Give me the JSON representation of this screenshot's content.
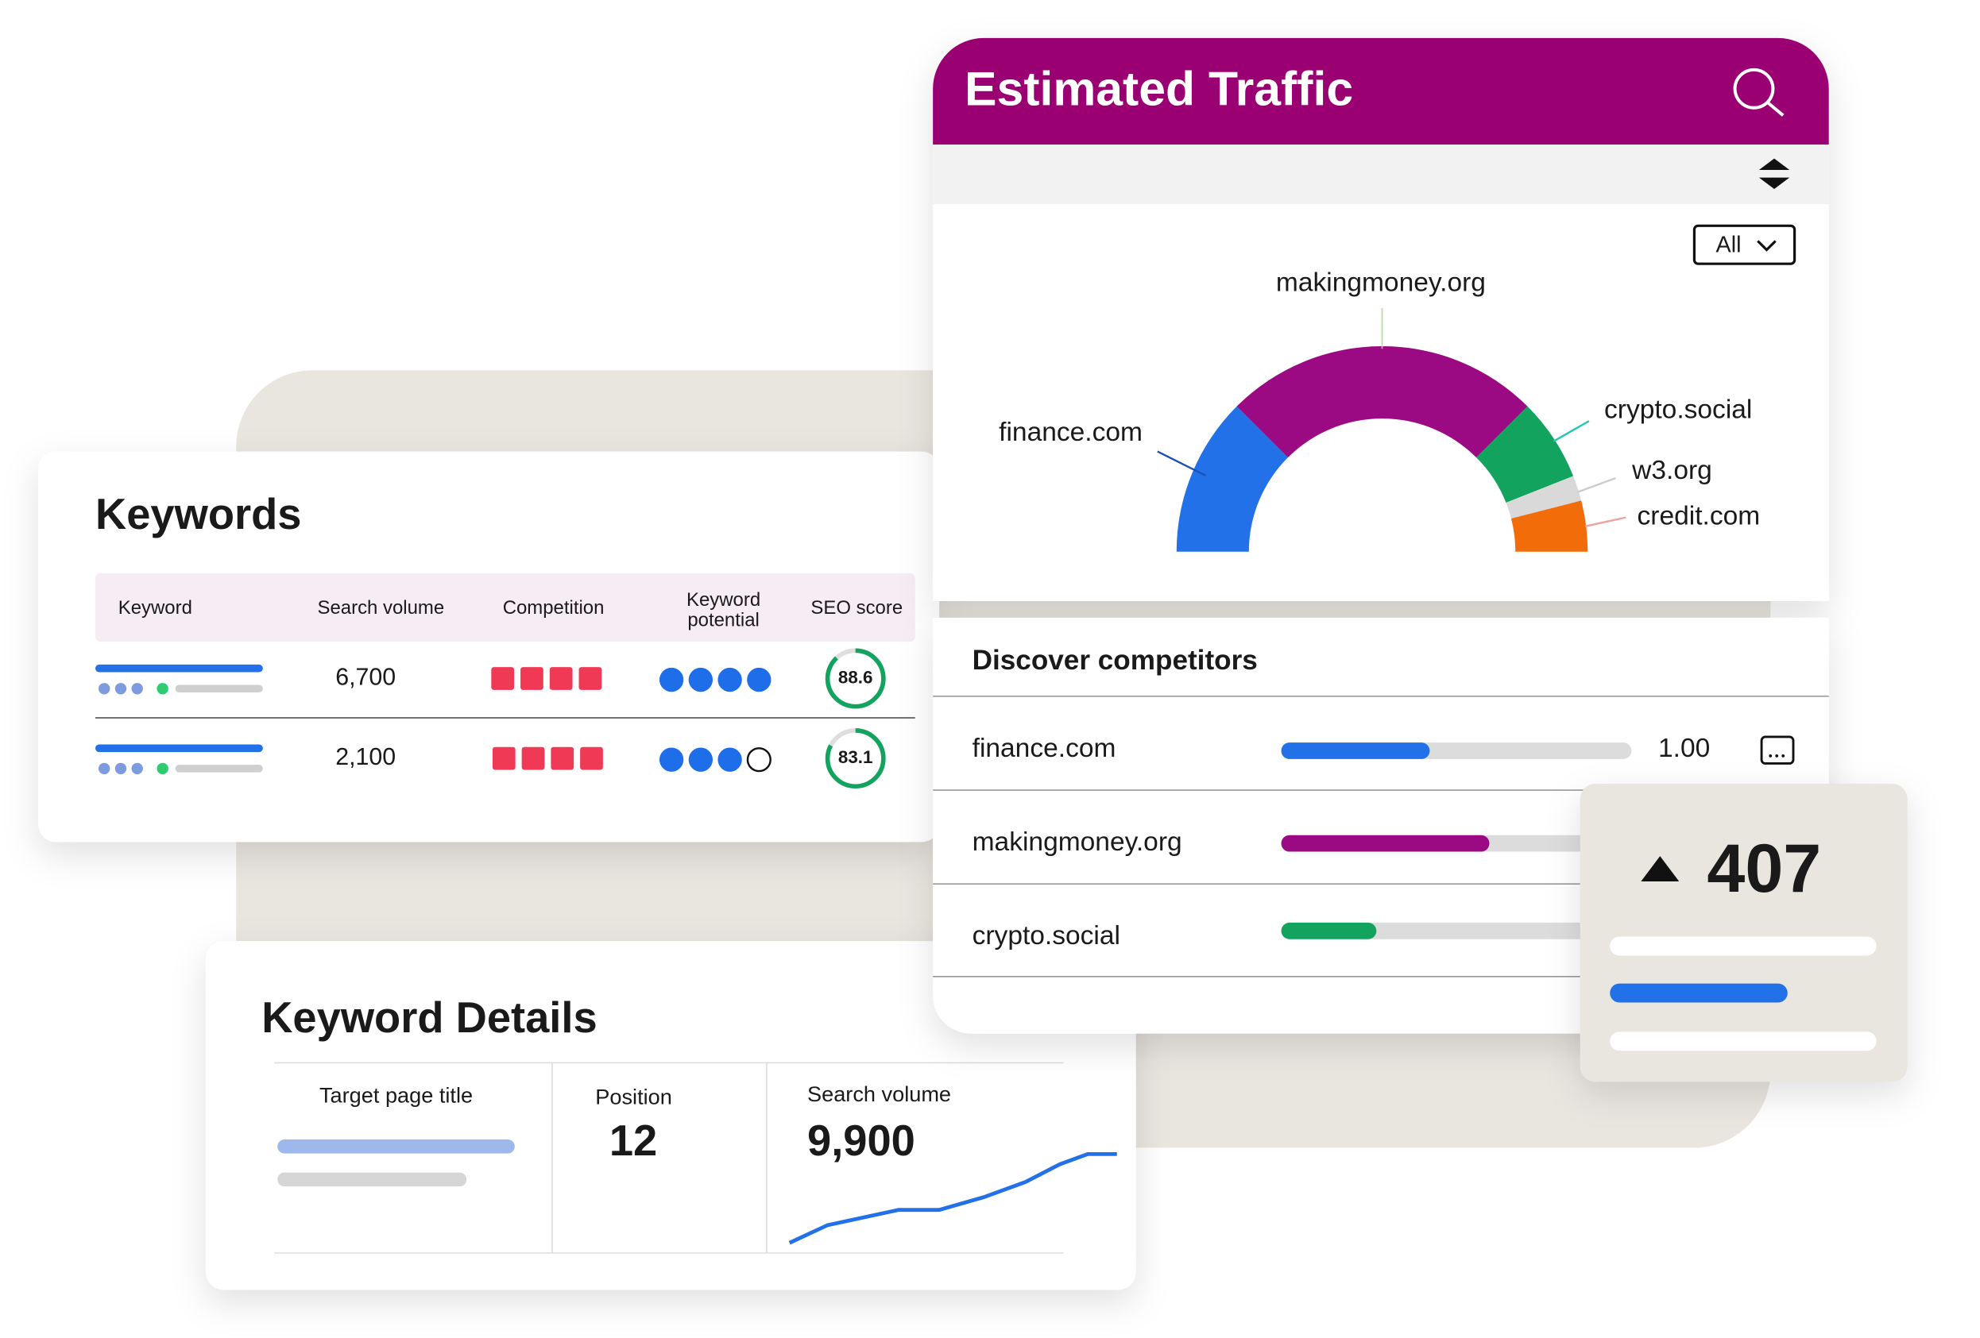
{
  "keywords": {
    "title": "Keywords",
    "columns": [
      "Keyword",
      "Search volume",
      "Competition",
      "Keyword potential",
      "SEO score"
    ],
    "rows": [
      {
        "search_volume": "6,700",
        "seo_score": 88.6
      },
      {
        "search_volume": "2,100",
        "seo_score": 83.1
      }
    ]
  },
  "keyword_details": {
    "title": "Keyword Details",
    "target_label": "Target page title",
    "position_label": "Position",
    "position": 12,
    "volume_label": "Search volume",
    "volume": "9,900"
  },
  "estimated_traffic": {
    "title": "Estimated Traffic",
    "filter": "All",
    "segments": [
      {
        "label": "finance.com",
        "value": 25,
        "color": "#2271e8"
      },
      {
        "label": "makingmoney.org",
        "value": 50,
        "color": "#9b0a83"
      },
      {
        "label": "crypto.social",
        "value": 13,
        "color": "#12a35e"
      },
      {
        "label": "w3.org",
        "value": 4,
        "color": "#d9d9d9"
      },
      {
        "label": "credit.com",
        "value": 8,
        "color": "#f26c0a"
      }
    ]
  },
  "competitors": {
    "title": "Discover competitors",
    "rows": [
      {
        "name": "finance.com",
        "score": "1.00"
      },
      {
        "name": "makingmoney.org"
      },
      {
        "name": "crypto.social"
      }
    ]
  },
  "stat_card": {
    "value": 407
  }
}
